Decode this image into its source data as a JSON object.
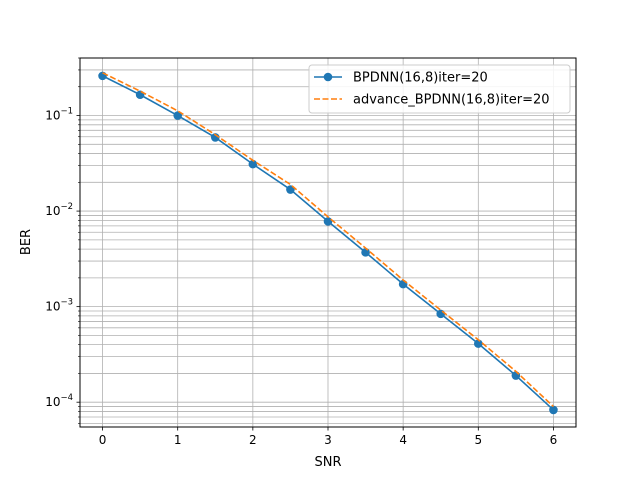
{
  "chart_data": {
    "type": "line",
    "xlabel": "SNR",
    "ylabel": "BER",
    "yscale": "log",
    "xlim": [
      -0.3,
      6.3
    ],
    "ylim": [
      5.5e-05,
      0.4
    ],
    "grid": "major and minor",
    "legend_position": "upper-right",
    "x_ticks": [
      {
        "value": 0,
        "label": "0"
      },
      {
        "value": 1,
        "label": "1"
      },
      {
        "value": 2,
        "label": "2"
      },
      {
        "value": 3,
        "label": "3"
      },
      {
        "value": 4,
        "label": "4"
      },
      {
        "value": 5,
        "label": "5"
      },
      {
        "value": 6,
        "label": "6"
      }
    ],
    "y_ticks": [
      {
        "value": 0.1,
        "base": "10",
        "exp": "−1"
      },
      {
        "value": 0.01,
        "base": "10",
        "exp": "−2"
      },
      {
        "value": 0.001,
        "base": "10",
        "exp": "−3"
      },
      {
        "value": 0.0001,
        "base": "10",
        "exp": "−4"
      }
    ],
    "series": [
      {
        "name": "BPDNN(16,8)iter=20",
        "color": "#1f77b4",
        "line": "solid",
        "marker": "circle",
        "x": [
          0,
          0.5,
          1,
          1.5,
          2,
          2.5,
          3,
          3.5,
          4,
          4.5,
          5,
          5.5,
          6
        ],
        "y": [
          0.26,
          0.165,
          0.1,
          0.059,
          0.031,
          0.0168,
          0.0078,
          0.0037,
          0.00172,
          0.00084,
          0.00041,
          0.00019,
          8.3e-05
        ]
      },
      {
        "name": "advance_BPDNN(16,8)iter=20",
        "color": "#ff7f0e",
        "line": "dashed",
        "marker": "none",
        "x": [
          0,
          0.5,
          1,
          1.5,
          2,
          2.5,
          3,
          3.5,
          4,
          4.5,
          5,
          5.5,
          6
        ],
        "y": [
          0.28,
          0.18,
          0.112,
          0.063,
          0.034,
          0.019,
          0.0087,
          0.0041,
          0.0019,
          0.00092,
          0.00045,
          0.00021,
          9e-05
        ]
      }
    ]
  }
}
